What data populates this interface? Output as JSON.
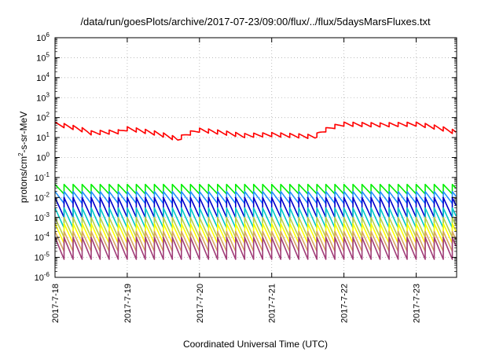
{
  "chart_data": {
    "type": "line",
    "title": "/data/run/goesPlots/archive/2017-07-23/09:00/flux/../flux/5daysMarsFluxes.txt",
    "xlabel": "Coordinated Universal Time (UTC)",
    "ylabel_base": "protons/cm",
    "ylabel_exp": "2",
    "ylabel_rest": "-s-sr-MeV",
    "y_scale": "log",
    "ylim": [
      1e-06,
      1000000.0
    ],
    "y_ticks": [
      {
        "base": "10",
        "exp": "-6"
      },
      {
        "base": "10",
        "exp": "-5"
      },
      {
        "base": "10",
        "exp": "-4"
      },
      {
        "base": "10",
        "exp": "-3"
      },
      {
        "base": "10",
        "exp": "-2"
      },
      {
        "base": "10",
        "exp": "-1"
      },
      {
        "base": "10",
        "exp": "0"
      },
      {
        "base": "10",
        "exp": "1"
      },
      {
        "base": "10",
        "exp": "2"
      },
      {
        "base": "10",
        "exp": "3"
      },
      {
        "base": "10",
        "exp": "4"
      },
      {
        "base": "10",
        "exp": "5"
      },
      {
        "base": "10",
        "exp": "6"
      }
    ],
    "x_unit": "days",
    "xlim": [
      0,
      5.56
    ],
    "x_ticks": [
      {
        "value": 0,
        "label": "2017-7-18"
      },
      {
        "value": 1,
        "label": "2017-7-19"
      },
      {
        "value": 2,
        "label": "2017-7-20"
      },
      {
        "value": 3,
        "label": "2017-7-21"
      },
      {
        "value": 4,
        "label": "2017-7-22"
      },
      {
        "value": 5,
        "label": "2017-7-23"
      }
    ],
    "grid": true,
    "sawtooth_period_days": 0.125,
    "series": [
      {
        "color": "#ff0000",
        "peak": 60,
        "trough": 15,
        "envelope": [
          [
            0,
            60
          ],
          [
            0.5,
            22
          ],
          [
            0.9,
            25
          ],
          [
            1.0,
            35
          ],
          [
            1.7,
            10
          ],
          [
            2.0,
            30
          ],
          [
            2.6,
            16
          ],
          [
            3.0,
            18
          ],
          [
            3.6,
            14
          ],
          [
            4.0,
            60
          ],
          [
            4.5,
            55
          ],
          [
            5.0,
            60
          ],
          [
            5.56,
            22
          ]
        ]
      },
      {
        "color": "#00ee00",
        "peak": 0.045,
        "trough": 0.015,
        "envelope": [
          [
            0,
            1
          ],
          [
            5.56,
            1
          ]
        ]
      },
      {
        "color": "#1e90ff",
        "peak": 0.02,
        "trough": 0.005,
        "envelope": [
          [
            0,
            1
          ],
          [
            5.56,
            1
          ]
        ]
      },
      {
        "color": "#0000cd",
        "peak": 0.01,
        "trough": 0.001,
        "envelope": [
          [
            0,
            1
          ],
          [
            5.56,
            1
          ]
        ]
      },
      {
        "color": "#00c8c8",
        "peak": 0.003,
        "trough": 0.0003,
        "envelope": [
          [
            0,
            1
          ],
          [
            5.56,
            1
          ]
        ]
      },
      {
        "color": "#b8d048",
        "peak": 0.001,
        "trough": 0.0001,
        "envelope": [
          [
            0,
            1
          ],
          [
            5.56,
            1
          ]
        ]
      },
      {
        "color": "#ffff00",
        "peak": 0.0005,
        "trough": 5e-05,
        "envelope": [
          [
            0,
            1
          ],
          [
            5.56,
            1
          ]
        ]
      },
      {
        "color": "#d8a860",
        "peak": 0.0002,
        "trough": 2e-05,
        "envelope": [
          [
            0,
            1
          ],
          [
            5.56,
            1
          ]
        ]
      },
      {
        "color": "#a03c78",
        "peak": 0.0001,
        "trough": 8e-06,
        "envelope": [
          [
            0,
            1
          ],
          [
            5.56,
            1
          ]
        ]
      }
    ]
  }
}
